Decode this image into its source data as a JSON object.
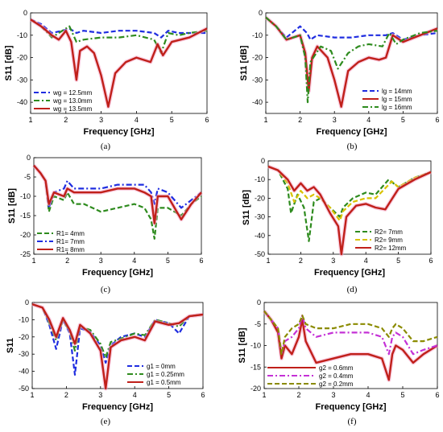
{
  "chart_data": [
    {
      "type": "line",
      "caption": "(a)",
      "xlabel": "Frequency [GHz]",
      "ylabel": "S11 [dB]",
      "xlim": [
        1,
        6
      ],
      "ylim": [
        -45,
        0
      ],
      "xticks": [
        "1",
        "2",
        "3",
        "4",
        "5",
        "6"
      ],
      "yticks": [
        "0",
        "-10",
        "-20",
        "-30",
        "-40"
      ],
      "legend_position": "bottom-left",
      "series": [
        {
          "name": "wg = 12.5mm",
          "color": "#1f2de0",
          "dash": "dash",
          "x": [
            1.0,
            1.3,
            1.6,
            1.9,
            2.1,
            2.3,
            2.5,
            3.0,
            3.5,
            4.0,
            4.5,
            4.7,
            4.9,
            5.2,
            5.5,
            6.0
          ],
          "y": [
            -3,
            -5,
            -9,
            -8,
            -7,
            -9,
            -8,
            -9,
            -8,
            -8,
            -9,
            -11,
            -8,
            -9,
            -9,
            -9
          ]
        },
        {
          "name": "wg = 13.0mm",
          "color": "#2e8b1e",
          "dash": "dashdot",
          "x": [
            1.0,
            1.3,
            1.6,
            1.9,
            2.1,
            2.3,
            2.5,
            3.0,
            3.5,
            4.0,
            4.5,
            4.7,
            4.9,
            5.2,
            5.5,
            6.0
          ],
          "y": [
            -3,
            -6,
            -11,
            -8,
            -6,
            -13,
            -12,
            -11,
            -11,
            -10,
            -12,
            -18,
            -9,
            -10,
            -9,
            -8
          ]
        },
        {
          "name": "wg = 13.5mm",
          "color": "#c0201a",
          "dash": "solid",
          "x": [
            1.0,
            1.3,
            1.6,
            1.8,
            2.0,
            2.15,
            2.3,
            2.4,
            2.6,
            2.8,
            3.0,
            3.2,
            3.4,
            3.7,
            4.0,
            4.4,
            4.6,
            4.75,
            5.0,
            5.5,
            6.0
          ],
          "y": [
            -3,
            -6,
            -10,
            -12,
            -8,
            -13,
            -30,
            -17,
            -15,
            -18,
            -28,
            -42,
            -27,
            -22,
            -20,
            -22,
            -14,
            -19,
            -13,
            -11,
            -7
          ]
        }
      ]
    },
    {
      "type": "line",
      "caption": "(b)",
      "xlabel": "Frequency [GHz]",
      "ylabel": "S11 [dB]",
      "xlim": [
        1,
        6
      ],
      "ylim": [
        -45,
        0
      ],
      "xticks": [
        "1",
        "2",
        "3",
        "4",
        "5",
        "6"
      ],
      "yticks": [
        "0",
        "-10",
        "-20",
        "-30",
        "-40"
      ],
      "legend_position": "bottom-right",
      "series": [
        {
          "name": "lg = 14mm",
          "color": "#1f2de0",
          "dash": "dash",
          "x": [
            1.0,
            1.3,
            1.6,
            2.0,
            2.2,
            2.3,
            2.5,
            3.0,
            3.5,
            4.0,
            4.5,
            4.7,
            5.0,
            5.5,
            6.0
          ],
          "y": [
            -2,
            -6,
            -11,
            -6,
            -9,
            -12,
            -10,
            -11,
            -11,
            -10,
            -10,
            -9,
            -12,
            -10,
            -9
          ]
        },
        {
          "name": "lg = 15mm",
          "color": "#c0201a",
          "dash": "solid",
          "x": [
            1.0,
            1.3,
            1.6,
            2.0,
            2.15,
            2.25,
            2.35,
            2.5,
            2.8,
            3.0,
            3.2,
            3.4,
            3.7,
            4.0,
            4.3,
            4.5,
            4.7,
            5.0,
            5.5,
            6.0
          ],
          "y": [
            -2,
            -6,
            -12,
            -10,
            -18,
            -35,
            -20,
            -15,
            -20,
            -30,
            -42,
            -26,
            -22,
            -20,
            -21,
            -20,
            -10,
            -13,
            -10,
            -7
          ]
        },
        {
          "name": "lg = 16mm",
          "color": "#2e8b1e",
          "dash": "dashdot",
          "x": [
            1.0,
            1.3,
            1.6,
            2.0,
            2.15,
            2.22,
            2.3,
            2.6,
            2.9,
            3.1,
            3.4,
            3.7,
            4.0,
            4.4,
            4.6,
            4.8,
            5.0,
            5.5,
            6.0
          ],
          "y": [
            -2,
            -6,
            -12,
            -10,
            -20,
            -40,
            -22,
            -15,
            -17,
            -25,
            -18,
            -15,
            -14,
            -15,
            -9,
            -14,
            -12,
            -9,
            -8
          ]
        }
      ]
    },
    {
      "type": "line",
      "caption": "(c)",
      "xlabel": "Frequency [GHz]",
      "ylabel": "S11 [dB]",
      "xlim": [
        1,
        6
      ],
      "ylim": [
        -25,
        0
      ],
      "xticks": [
        "1",
        "2",
        "3",
        "4",
        "5",
        "6"
      ],
      "yticks": [
        "0",
        "-5",
        "-10",
        "-15",
        "-20",
        "-25"
      ],
      "legend_position": "bottom-left",
      "series": [
        {
          "name": "R1= 4mm",
          "color": "#2e8b1e",
          "dash": "dash",
          "x": [
            1.0,
            1.2,
            1.35,
            1.45,
            1.6,
            1.9,
            2.0,
            2.2,
            2.5,
            3.0,
            3.5,
            4.0,
            4.3,
            4.5,
            4.6,
            4.7,
            5.0,
            5.4,
            5.7,
            6.0
          ],
          "y": [
            -2,
            -4,
            -6,
            -14,
            -10,
            -11,
            -9,
            -12,
            -12,
            -14,
            -13,
            -12,
            -13,
            -16,
            -21,
            -13,
            -13,
            -15,
            -12,
            -10
          ]
        },
        {
          "name": "R1= 7mm",
          "color": "#1f2de0",
          "dash": "dashdot",
          "x": [
            1.0,
            1.2,
            1.35,
            1.45,
            1.6,
            1.9,
            2.0,
            2.2,
            2.5,
            3.0,
            3.5,
            4.0,
            4.3,
            4.5,
            4.6,
            4.7,
            5.0,
            5.4,
            5.7,
            6.0
          ],
          "y": [
            -2,
            -4,
            -6,
            -13,
            -9,
            -8,
            -6,
            -8,
            -8,
            -8,
            -7,
            -7,
            -7,
            -9,
            -12,
            -8,
            -9,
            -13,
            -11,
            -9
          ]
        },
        {
          "name": "R1= 8mm",
          "color": "#c0201a",
          "dash": "solid",
          "x": [
            1.0,
            1.2,
            1.35,
            1.45,
            1.6,
            1.9,
            2.0,
            2.2,
            2.5,
            3.0,
            3.5,
            4.0,
            4.3,
            4.5,
            4.6,
            4.7,
            5.0,
            5.4,
            5.7,
            6.0
          ],
          "y": [
            -2,
            -4,
            -6,
            -12,
            -9,
            -10,
            -8,
            -9,
            -9,
            -9,
            -8,
            -8,
            -9,
            -10,
            -17,
            -10,
            -10,
            -16,
            -12,
            -9
          ]
        }
      ]
    },
    {
      "type": "line",
      "caption": "(d)",
      "xlabel": "Frequency [GHz]",
      "ylabel": "S11 [dB]",
      "xlim": [
        1,
        6
      ],
      "ylim": [
        -50,
        0
      ],
      "xticks": [
        "1",
        "2",
        "3",
        "4",
        "5",
        "6"
      ],
      "yticks": [
        "0",
        "-10",
        "-20",
        "-30",
        "-40",
        "-50"
      ],
      "legend_position": "bottom-right",
      "series": [
        {
          "name": "R2= 7mm",
          "color": "#2e8b1e",
          "dash": "dash",
          "x": [
            1.0,
            1.3,
            1.6,
            1.7,
            1.9,
            2.1,
            2.25,
            2.4,
            2.6,
            2.9,
            3.2,
            3.3,
            3.6,
            4.0,
            4.3,
            4.7,
            5.0,
            5.5,
            6.0
          ],
          "y": [
            -3,
            -5,
            -15,
            -28,
            -18,
            -25,
            -43,
            -22,
            -20,
            -25,
            -30,
            -25,
            -20,
            -17,
            -18,
            -10,
            -14,
            -9,
            -6
          ]
        },
        {
          "name": "R2= 9mm",
          "color": "#d9c200",
          "dash": "dash",
          "x": [
            1.0,
            1.3,
            1.6,
            1.8,
            2.0,
            2.2,
            2.4,
            2.6,
            2.9,
            3.2,
            3.3,
            3.6,
            4.0,
            4.3,
            4.8,
            5.0,
            5.5,
            6.0
          ],
          "y": [
            -3,
            -5,
            -12,
            -22,
            -16,
            -20,
            -18,
            -20,
            -25,
            -32,
            -27,
            -22,
            -20,
            -20,
            -11,
            -14,
            -9,
            -6
          ]
        },
        {
          "name": "R2= 12mm",
          "color": "#c0201a",
          "dash": "solid",
          "x": [
            1.0,
            1.3,
            1.6,
            1.8,
            2.0,
            2.2,
            2.4,
            2.6,
            2.9,
            3.15,
            3.25,
            3.4,
            3.7,
            4.0,
            4.3,
            4.6,
            5.0,
            5.5,
            6.0
          ],
          "y": [
            -3,
            -5,
            -10,
            -16,
            -12,
            -16,
            -14,
            -18,
            -28,
            -35,
            -50,
            -30,
            -24,
            -23,
            -25,
            -26,
            -15,
            -10,
            -6
          ]
        }
      ]
    },
    {
      "type": "line",
      "caption": "(e)",
      "xlabel": "Frequency [GHz]",
      "ylabel": "S11",
      "xlim": [
        1,
        6
      ],
      "ylim": [
        -50,
        0
      ],
      "xticks": [
        "1",
        "2",
        "3",
        "4",
        "5",
        "6"
      ],
      "yticks": [
        "0",
        "-10",
        "-20",
        "-30",
        "-40",
        "-50"
      ],
      "legend_position": "bottom-right",
      "series": [
        {
          "name": "g1 = 0mm",
          "color": "#1f2de0",
          "dash": "dash",
          "x": [
            1.0,
            1.3,
            1.5,
            1.7,
            1.9,
            2.1,
            2.25,
            2.4,
            2.7,
            3.0,
            3.15,
            3.3,
            3.6,
            4.0,
            4.3,
            4.6,
            5.0,
            5.3,
            5.6,
            6.0
          ],
          "y": [
            -1,
            -3,
            -13,
            -27,
            -10,
            -18,
            -42,
            -15,
            -17,
            -25,
            -35,
            -25,
            -20,
            -18,
            -20,
            -10,
            -12,
            -18,
            -8,
            -7
          ]
        },
        {
          "name": "g1 = 0.25mm",
          "color": "#2e8b1e",
          "dash": "dashdot",
          "x": [
            1.0,
            1.3,
            1.5,
            1.7,
            1.9,
            2.1,
            2.25,
            2.4,
            2.7,
            3.0,
            3.15,
            3.3,
            3.6,
            4.0,
            4.3,
            4.6,
            5.0,
            5.3,
            5.6,
            6.0
          ],
          "y": [
            -1,
            -3,
            -12,
            -22,
            -10,
            -17,
            -28,
            -14,
            -16,
            -24,
            -32,
            -23,
            -21,
            -18,
            -19,
            -10,
            -12,
            -14,
            -8,
            -7
          ]
        },
        {
          "name": "g1 = 0.5mm",
          "color": "#c0201a",
          "dash": "solid",
          "x": [
            1.0,
            1.3,
            1.5,
            1.7,
            1.9,
            2.1,
            2.25,
            2.4,
            2.7,
            3.0,
            3.15,
            3.3,
            3.6,
            4.0,
            4.3,
            4.6,
            5.0,
            5.3,
            5.6,
            6.0
          ],
          "y": [
            -1,
            -3,
            -10,
            -20,
            -9,
            -16,
            -24,
            -13,
            -18,
            -28,
            -50,
            -26,
            -22,
            -20,
            -22,
            -11,
            -13,
            -12,
            -8,
            -7
          ]
        }
      ]
    },
    {
      "type": "line",
      "caption": "(f)",
      "xlabel": "Frequency [GHz]",
      "ylabel": "S11 [dB]",
      "xlim": [
        1,
        6
      ],
      "ylim": [
        -20,
        0
      ],
      "xticks": [
        "1",
        "2",
        "3",
        "4",
        "5",
        "6"
      ],
      "yticks": [
        "0",
        "-5",
        "-10",
        "-15",
        "-20"
      ],
      "legend_position": "bottom-left",
      "series": [
        {
          "name": "g2 = 0.6mm",
          "color": "#c0201a",
          "dash": "solid",
          "x": [
            1.0,
            1.2,
            1.4,
            1.5,
            1.6,
            1.8,
            2.0,
            2.1,
            2.2,
            2.5,
            3.0,
            3.5,
            4.0,
            4.4,
            4.6,
            4.7,
            4.8,
            5.0,
            5.3,
            5.6,
            6.0
          ],
          "y": [
            -2,
            -4,
            -7,
            -13,
            -10,
            -12,
            -8,
            -4,
            -9,
            -14,
            -13,
            -12,
            -12,
            -13,
            -18,
            -12,
            -10,
            -11,
            -14,
            -12,
            -10
          ]
        },
        {
          "name": "g2 = 0.4mm",
          "color": "#c431d6",
          "dash": "dashdot",
          "x": [
            1.0,
            1.2,
            1.4,
            1.5,
            1.6,
            1.8,
            2.0,
            2.1,
            2.2,
            2.5,
            3.0,
            3.5,
            4.0,
            4.4,
            4.6,
            4.7,
            4.8,
            5.0,
            5.3,
            5.6,
            6.0
          ],
          "y": [
            -2,
            -4,
            -6,
            -12,
            -9,
            -8,
            -6,
            -3,
            -6,
            -8,
            -7,
            -7,
            -7,
            -8,
            -12,
            -8,
            -7,
            -8,
            -12,
            -11,
            -10
          ]
        },
        {
          "name": "g2 = 0.2mm",
          "color": "#8b8b00",
          "dash": "dash",
          "x": [
            1.0,
            1.2,
            1.4,
            1.5,
            1.6,
            1.8,
            2.0,
            2.1,
            2.2,
            2.5,
            3.0,
            3.5,
            4.0,
            4.4,
            4.6,
            4.7,
            4.8,
            5.0,
            5.3,
            5.6,
            6.0
          ],
          "y": [
            -2,
            -4,
            -6,
            -12,
            -8,
            -6,
            -5,
            -3,
            -5,
            -6,
            -6,
            -5,
            -5,
            -6,
            -8,
            -6,
            -5,
            -6,
            -9,
            -9,
            -8
          ]
        }
      ]
    }
  ]
}
